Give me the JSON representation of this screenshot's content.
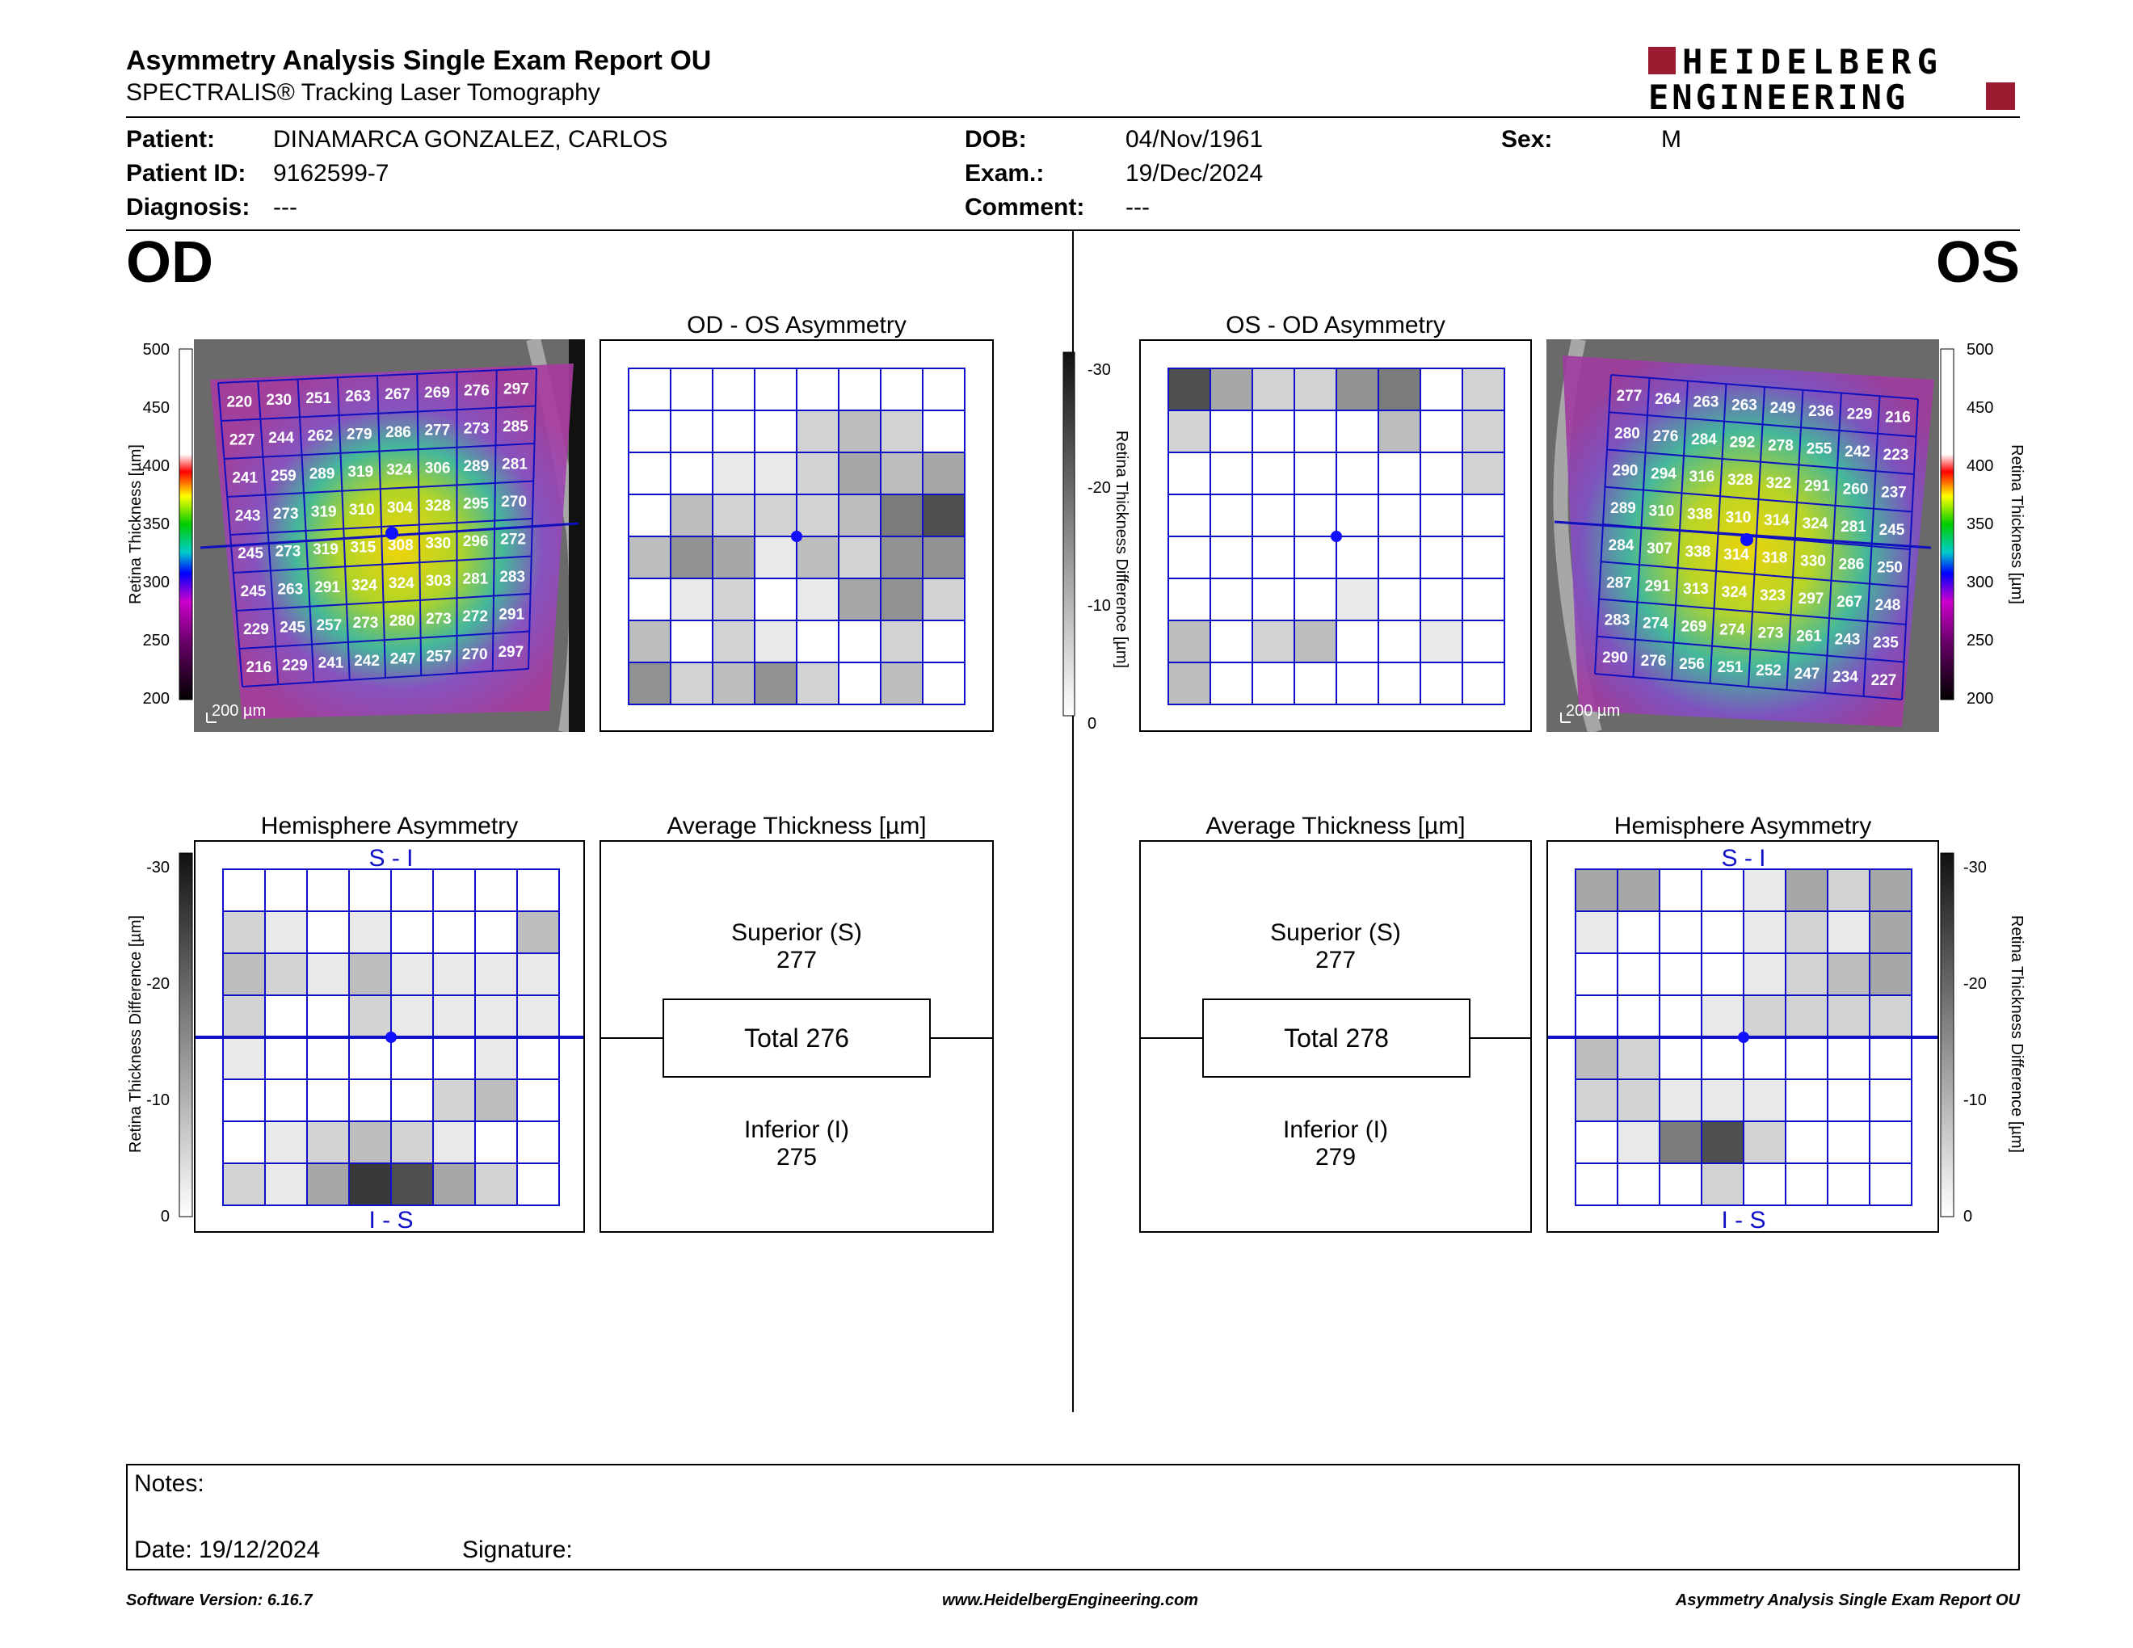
{
  "header": {
    "title": "Asymmetry Analysis Single Exam Report OU",
    "subtitle": "SPECTRALIS® Tracking Laser Tomography",
    "logo_line1": "HEIDELBERG",
    "logo_line2": "ENGINEERING"
  },
  "patient": {
    "patient_label": "Patient:",
    "patient_value": "DINAMARCA GONZALEZ, CARLOS",
    "id_label": "Patient ID:",
    "id_value": "9162599-7",
    "diagnosis_label": "Diagnosis:",
    "diagnosis_value": "---",
    "dob_label": "DOB:",
    "dob_value": "04/Nov/1961",
    "exam_label": "Exam.:",
    "exam_value": "19/Dec/2024",
    "comment_label": "Comment:",
    "comment_value": "---",
    "sex_label": "Sex:",
    "sex_value": "M"
  },
  "od": {
    "eye_label": "OD",
    "asym_title": "OD - OS Asymmetry",
    "hemi_title": "Hemisphere Asymmetry",
    "avg_title": "Average Thickness [µm]",
    "superior_label": "Superior (S)",
    "superior_value": "277",
    "total_label": "Total 276",
    "inferior_label": "Inferior (I)",
    "inferior_value": "275",
    "hemi_top": "S - I",
    "hemi_bottom": "I - S",
    "scale_bar": "200 µm",
    "thickness": [
      [
        220,
        230,
        251,
        263,
        267,
        269,
        276,
        297
      ],
      [
        227,
        244,
        262,
        279,
        286,
        277,
        273,
        285
      ],
      [
        241,
        259,
        289,
        319,
        324,
        306,
        289,
        281
      ],
      [
        243,
        273,
        319,
        310,
        304,
        328,
        295,
        270
      ],
      [
        245,
        273,
        319,
        315,
        308,
        330,
        296,
        272
      ],
      [
        245,
        263,
        291,
        324,
        324,
        303,
        281,
        283
      ],
      [
        229,
        245,
        257,
        273,
        280,
        273,
        272,
        291
      ],
      [
        216,
        229,
        241,
        242,
        247,
        257,
        270,
        297
      ]
    ],
    "asym_gray": [
      [
        0,
        0,
        0,
        0,
        0,
        0,
        0,
        0
      ],
      [
        0,
        0,
        0,
        0,
        2,
        3,
        2,
        0
      ],
      [
        0,
        0,
        1,
        1,
        2,
        4,
        3,
        4
      ],
      [
        0,
        3,
        2,
        2,
        2,
        3,
        6,
        8
      ],
      [
        3,
        5,
        4,
        1,
        3,
        2,
        5,
        5
      ],
      [
        0,
        1,
        2,
        0,
        1,
        4,
        5,
        2
      ],
      [
        3,
        0,
        2,
        1,
        0,
        0,
        2,
        0
      ],
      [
        5,
        2,
        3,
        5,
        2,
        0,
        3,
        0
      ]
    ],
    "hemi_gray": [
      [
        0,
        0,
        0,
        0,
        0,
        0,
        0,
        0
      ],
      [
        2,
        1,
        0,
        1,
        0,
        0,
        0,
        3
      ],
      [
        3,
        2,
        1,
        3,
        1,
        1,
        1,
        1
      ],
      [
        2,
        0,
        0,
        2,
        1,
        1,
        1,
        1
      ],
      [
        1,
        0,
        0,
        0,
        0,
        0,
        1,
        0
      ],
      [
        0,
        0,
        0,
        0,
        0,
        2,
        3,
        0
      ],
      [
        0,
        1,
        2,
        3,
        2,
        1,
        0,
        0
      ],
      [
        2,
        1,
        4,
        9,
        8,
        4,
        2,
        0
      ]
    ]
  },
  "os": {
    "eye_label": "OS",
    "asym_title": "OS - OD Asymmetry",
    "hemi_title": "Hemisphere Asymmetry",
    "avg_title": "Average Thickness [µm]",
    "superior_label": "Superior (S)",
    "superior_value": "277",
    "total_label": "Total 278",
    "inferior_label": "Inferior (I)",
    "inferior_value": "279",
    "hemi_top": "S - I",
    "hemi_bottom": "I - S",
    "scale_bar": "200 µm",
    "thickness": [
      [
        277,
        264,
        263,
        263,
        249,
        236,
        229,
        216
      ],
      [
        280,
        276,
        284,
        292,
        278,
        255,
        242,
        223
      ],
      [
        290,
        294,
        316,
        328,
        322,
        291,
        260,
        237
      ],
      [
        289,
        310,
        338,
        310,
        314,
        324,
        281,
        245
      ],
      [
        284,
        307,
        338,
        314,
        318,
        330,
        286,
        250
      ],
      [
        287,
        291,
        313,
        324,
        323,
        297,
        267,
        248
      ],
      [
        283,
        274,
        269,
        274,
        273,
        261,
        243,
        235
      ],
      [
        290,
        276,
        256,
        251,
        252,
        247,
        234,
        227
      ]
    ],
    "asym_gray": [
      [
        8,
        4,
        2,
        2,
        5,
        6,
        0,
        2
      ],
      [
        2,
        0,
        0,
        0,
        0,
        3,
        0,
        2
      ],
      [
        0,
        0,
        0,
        0,
        0,
        0,
        0,
        2
      ],
      [
        0,
        0,
        0,
        0,
        0,
        0,
        0,
        0
      ],
      [
        0,
        0,
        0,
        0,
        0,
        0,
        0,
        0
      ],
      [
        0,
        0,
        0,
        0,
        1,
        0,
        0,
        0
      ],
      [
        3,
        0,
        2,
        3,
        0,
        0,
        1,
        0
      ],
      [
        3,
        0,
        0,
        0,
        0,
        0,
        0,
        0
      ]
    ],
    "hemi_gray": [
      [
        4,
        4,
        0,
        0,
        1,
        4,
        2,
        4
      ],
      [
        1,
        0,
        0,
        0,
        1,
        2,
        1,
        4
      ],
      [
        0,
        0,
        0,
        0,
        1,
        2,
        3,
        4
      ],
      [
        0,
        0,
        0,
        1,
        2,
        2,
        2,
        2
      ],
      [
        3,
        2,
        0,
        0,
        0,
        0,
        0,
        0
      ],
      [
        2,
        2,
        1,
        1,
        1,
        0,
        0,
        0
      ],
      [
        0,
        1,
        6,
        8,
        2,
        0,
        0,
        0
      ],
      [
        0,
        0,
        0,
        2,
        0,
        0,
        0,
        0
      ]
    ]
  },
  "scales": {
    "thickness_label": "Retina Thickness [µm]",
    "thickness_ticks": [
      "500",
      "450",
      "400",
      "350",
      "300",
      "250",
      "200"
    ],
    "diff_label": "Retina Thickness Difference [µm]",
    "diff_ticks": [
      "-30",
      "-20",
      "-10",
      "0"
    ]
  },
  "notes": {
    "notes_label": "Notes:",
    "date_label": "Date: 19/12/2024",
    "signature_label": "Signature:"
  },
  "footer": {
    "version": "Software Version: 6.16.7",
    "website": "www.HeidelbergEngineering.com",
    "report_name": "Asymmetry Analysis Single Exam Report OU"
  }
}
